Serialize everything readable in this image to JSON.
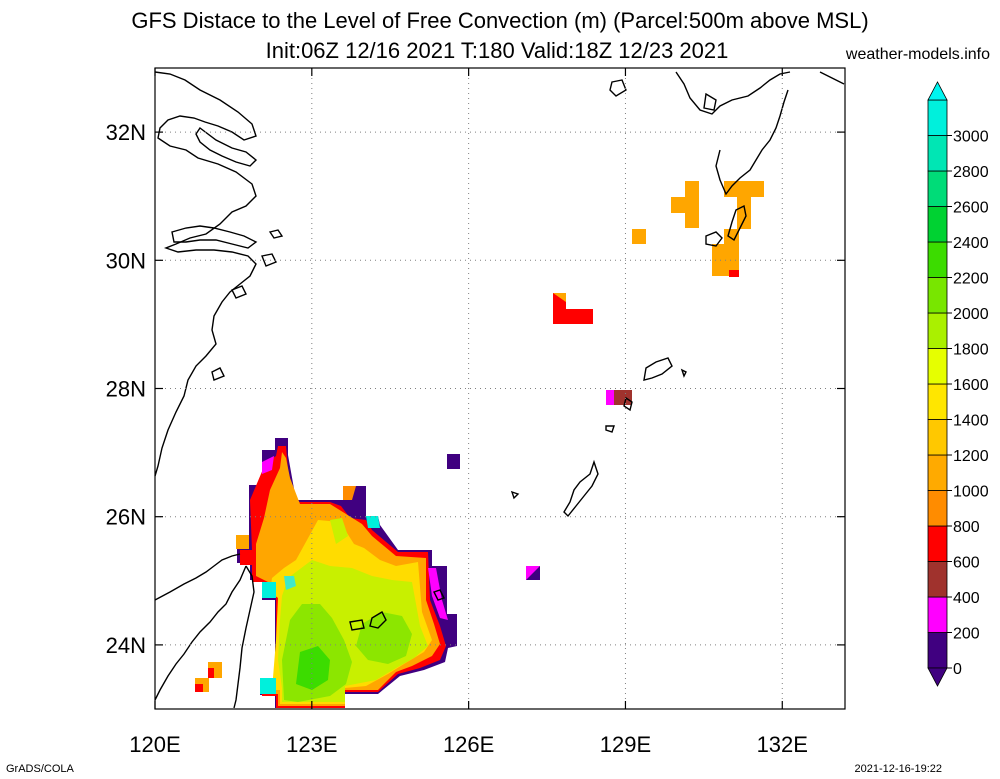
{
  "title": {
    "line1": "GFS Distace to the Level of Free Convection (m) (Parcel:500m above MSL)",
    "line2": "Init:06Z 12/16 2021 T:180 Valid:18Z 12/23 2021",
    "site": "weather-models.info"
  },
  "footer": {
    "left": "GrADS/COLA",
    "right": "2021-12-16-19:22"
  },
  "map": {
    "lon_range": [
      120,
      133.2
    ],
    "lat_range": [
      23,
      33
    ],
    "lon_ticks": [
      {
        "value": 120,
        "label": "120E"
      },
      {
        "value": 123,
        "label": "123E"
      },
      {
        "value": 126,
        "label": "126E"
      },
      {
        "value": 129,
        "label": "129E"
      },
      {
        "value": 132,
        "label": "132E"
      }
    ],
    "lat_ticks": [
      {
        "value": 24,
        "label": "24N"
      },
      {
        "value": 26,
        "label": "26N"
      },
      {
        "value": 28,
        "label": "28N"
      },
      {
        "value": 30,
        "label": "30N"
      },
      {
        "value": 32,
        "label": "32N"
      }
    ],
    "grid": "dotted"
  },
  "colorbar": {
    "levels": [
      0,
      200,
      400,
      600,
      800,
      1000,
      1200,
      1400,
      1600,
      1800,
      2000,
      2200,
      2400,
      2600,
      2800,
      3000
    ],
    "labels": [
      "0",
      "200",
      "400",
      "600",
      "800",
      "1000",
      "1200",
      "1400",
      "1600",
      "1800",
      "2000",
      "2200",
      "2400",
      "2600",
      "2800",
      "3000"
    ],
    "colors": [
      "#400080",
      "#ff00ff",
      "#a0322d",
      "#ff0000",
      "#ff8c00",
      "#ffaa00",
      "#ffc800",
      "#ffe600",
      "#e6ff00",
      "#aaf000",
      "#78e600",
      "#3cdc00",
      "#00d232",
      "#00dc78",
      "#00e6b4",
      "#00f0dc"
    ],
    "under_color": "#400080",
    "over_color": "#00f5f0"
  }
}
